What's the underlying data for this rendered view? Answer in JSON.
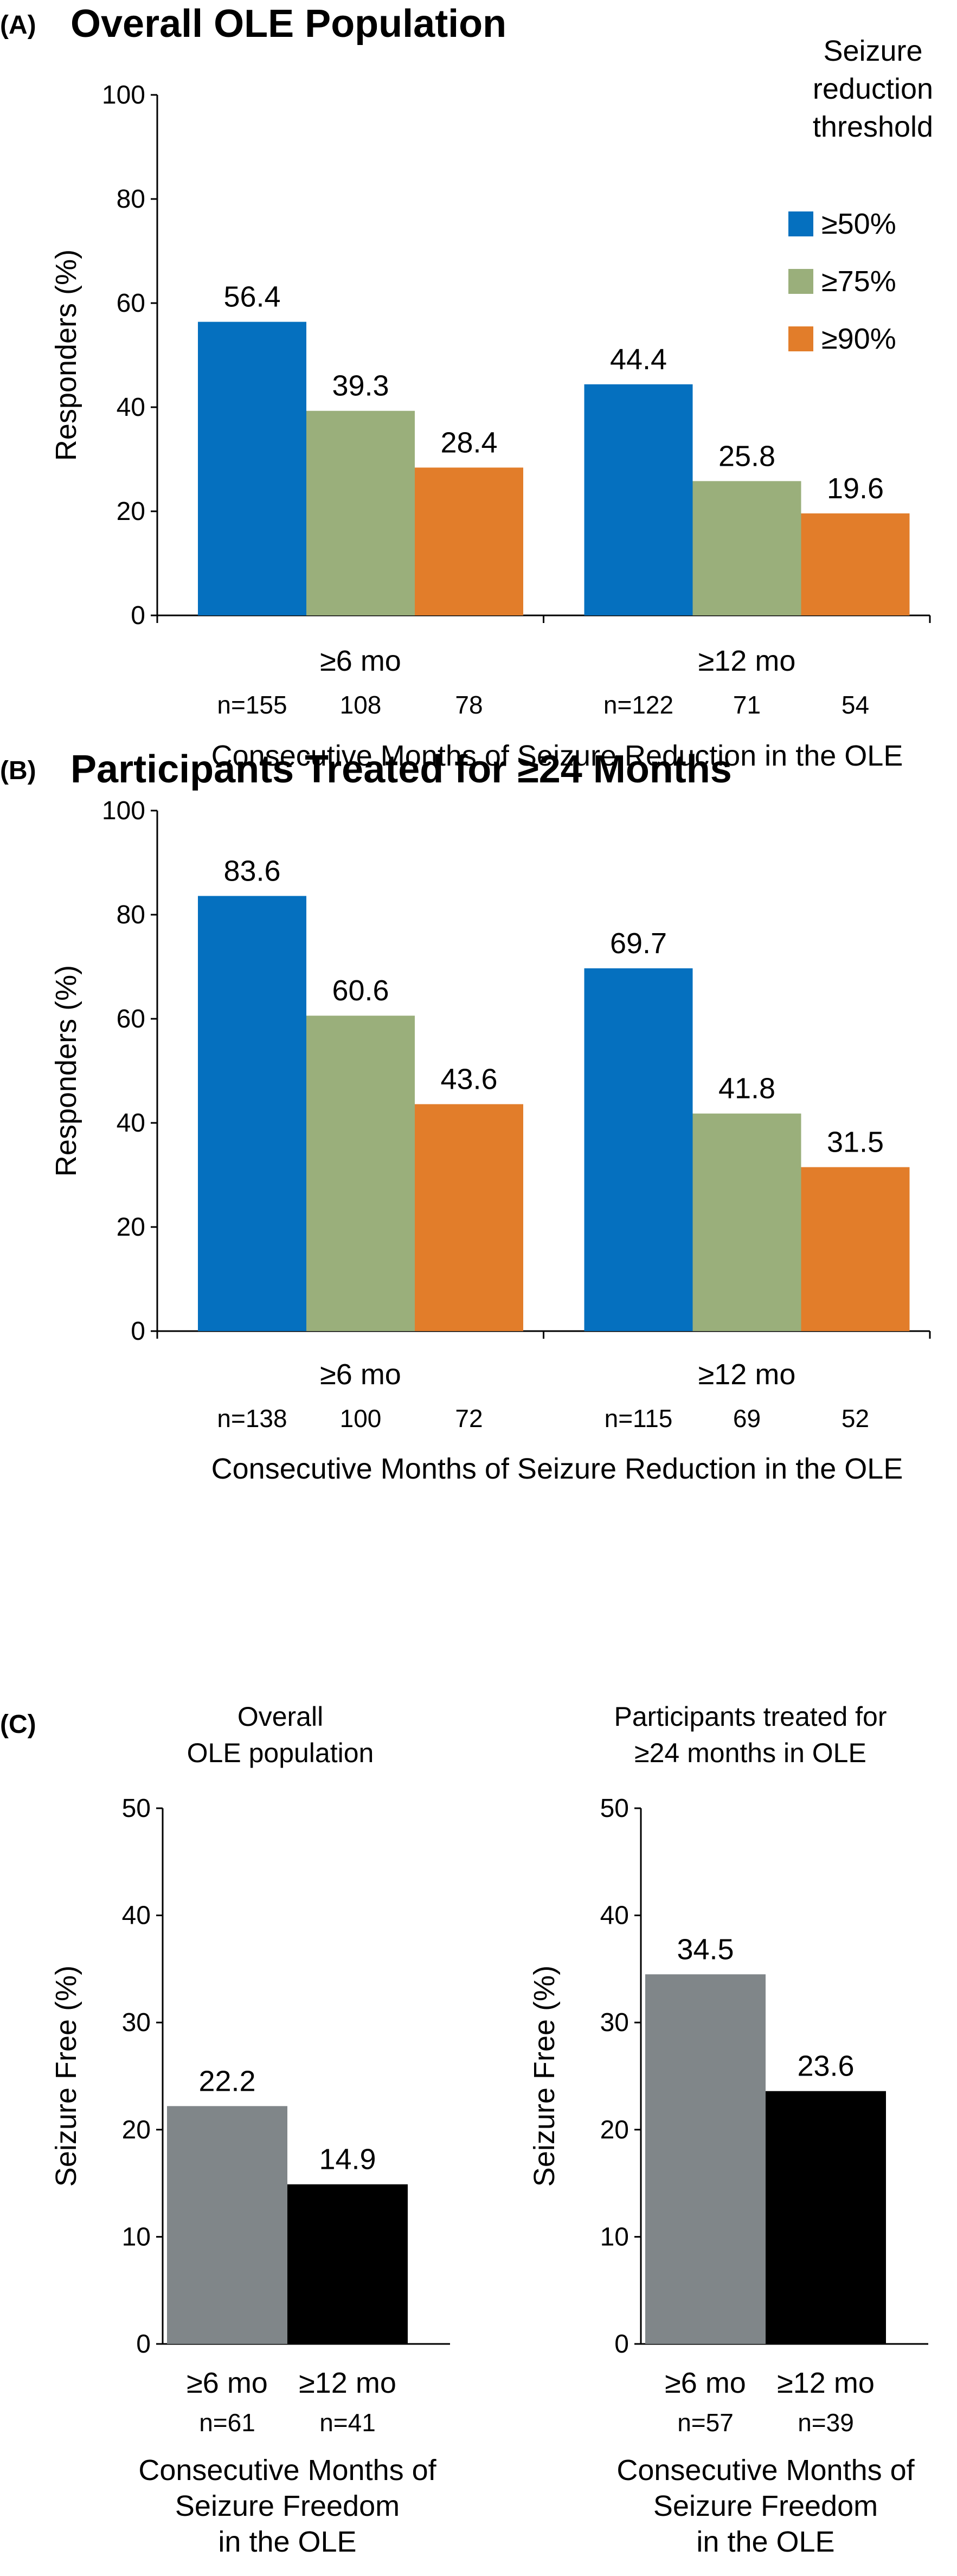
{
  "panels": [
    {
      "letter": "(A)",
      "title": "Overall OLE Population",
      "chart_data": {
        "type": "bar",
        "categories": [
          "≥6 mo",
          "≥12 mo"
        ],
        "series": [
          {
            "name": "≥50%",
            "values": [
              56.4,
              44.4
            ],
            "n": [
              "n=155",
              "n=122"
            ],
            "color": "#0570bf"
          },
          {
            "name": "≥75%",
            "values": [
              39.3,
              25.8
            ],
            "n": [
              "108",
              "71"
            ],
            "color": "#9aaf7b"
          },
          {
            "name": "≥90%",
            "values": [
              28.4,
              19.6
            ],
            "n": [
              "78",
              "54"
            ],
            "color": "#e27d2a"
          }
        ],
        "ylabel": "Responders (%)",
        "xlabel": "Consecutive Months of Seizure Reduction in the OLE",
        "ylim": [
          0,
          100
        ],
        "yticks": [
          0,
          20,
          40,
          60,
          80,
          100
        ],
        "legend_title": [
          "Seizure",
          "reduction",
          "threshold"
        ],
        "legend_placement": "top-right",
        "grid": false
      }
    },
    {
      "letter": "(B)",
      "title": "Participants Treated for ≥24 Months",
      "chart_data": {
        "type": "bar",
        "categories": [
          "≥6 mo",
          "≥12 mo"
        ],
        "series": [
          {
            "name": "≥50%",
            "values": [
              83.6,
              69.7
            ],
            "n": [
              "n=138",
              "n=115"
            ],
            "color": "#0570bf"
          },
          {
            "name": "≥75%",
            "values": [
              60.6,
              41.8
            ],
            "n": [
              "100",
              "69"
            ],
            "color": "#9aaf7b"
          },
          {
            "name": "≥90%",
            "values": [
              43.6,
              31.5
            ],
            "n": [
              "72",
              "52"
            ],
            "color": "#e27d2a"
          }
        ],
        "ylabel": "Responders (%)",
        "xlabel": "Consecutive Months of Seizure Reduction in the OLE",
        "ylim": [
          0,
          100
        ],
        "yticks": [
          0,
          20,
          40,
          60,
          80,
          100
        ],
        "grid": false
      }
    },
    {
      "letter": "(C)",
      "charts": [
        {
          "title": [
            "Overall",
            "OLE population"
          ],
          "chart_data": {
            "type": "bar",
            "categories": [
              "≥6 mo",
              "≥12 mo"
            ],
            "values": [
              22.2,
              14.9
            ],
            "n": [
              "n=61",
              "n=41"
            ],
            "colors": [
              "#808689",
              "#000000"
            ],
            "ylabel": "Seizure Free (%)",
            "xlabel": [
              "Consecutive Months of",
              "Seizure Freedom",
              "in the OLE"
            ],
            "ylim": [
              0,
              50
            ],
            "yticks": [
              0,
              10,
              20,
              30,
              40,
              50
            ],
            "grid": false
          }
        },
        {
          "title": [
            "Participants treated for",
            "≥24 months in OLE"
          ],
          "chart_data": {
            "type": "bar",
            "categories": [
              "≥6 mo",
              "≥12 mo"
            ],
            "values": [
              34.5,
              23.6
            ],
            "n": [
              "n=57",
              "n=39"
            ],
            "colors": [
              "#808689",
              "#000000"
            ],
            "ylabel": "Seizure Free (%)",
            "xlabel": [
              "Consecutive Months of",
              "Seizure Freedom",
              "in the OLE"
            ],
            "ylim": [
              0,
              50
            ],
            "yticks": [
              0,
              10,
              20,
              30,
              40,
              50
            ],
            "grid": false
          }
        }
      ]
    }
  ]
}
